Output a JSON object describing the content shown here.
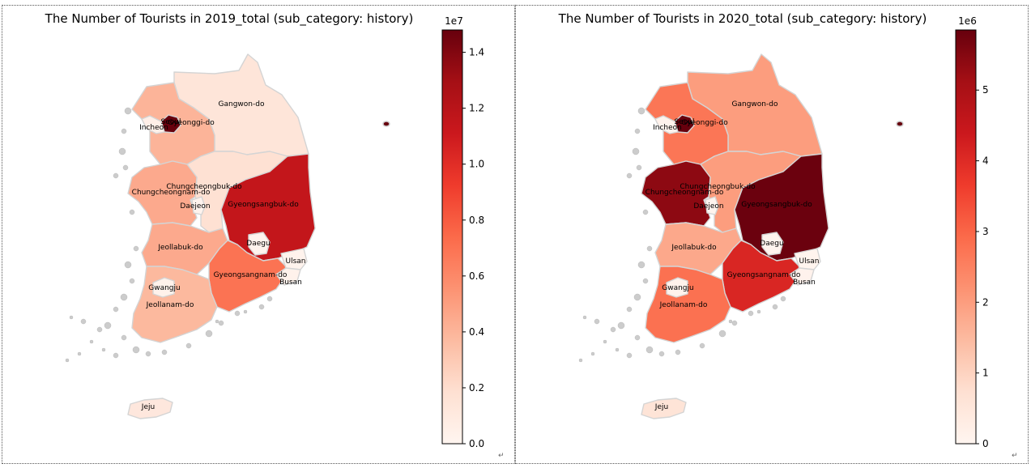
{
  "maps": [
    {
      "title": "The Number of Tourists in 2019_total (sub_category: history)",
      "colorbar": {
        "multiplier": "1e7",
        "ticks": [
          "0.0",
          "0.2",
          "0.4",
          "0.6",
          "0.8",
          "1.0",
          "1.2",
          "1.4"
        ],
        "max": 1.48
      },
      "regions": [
        {
          "name": "Seoul",
          "value": 1.48
        },
        {
          "name": "Incheon",
          "value": 0.05
        },
        {
          "name": "Gyeonggi-do",
          "value": 0.4
        },
        {
          "name": "Gangwon-do",
          "value": 0.14
        },
        {
          "name": "Chungcheongbuk-do",
          "value": 0.18
        },
        {
          "name": "Chungcheongnam-do",
          "value": 0.45
        },
        {
          "name": "Daejeon",
          "value": 0.02
        },
        {
          "name": "Gyeongsangbuk-do",
          "value": 1.15
        },
        {
          "name": "Daegu",
          "value": 0.02
        },
        {
          "name": "Jeollabuk-do",
          "value": 0.45
        },
        {
          "name": "Ulsan",
          "value": 0.02
        },
        {
          "name": "Gyeongsangnam-do",
          "value": 0.7
        },
        {
          "name": "Busan",
          "value": 0.03
        },
        {
          "name": "Gwangju",
          "value": 0.03
        },
        {
          "name": "Jeollanam-do",
          "value": 0.38
        },
        {
          "name": "Jeju",
          "value": 0.12
        }
      ]
    },
    {
      "title": "The Number of Tourists in 2020_total (sub_category: history)",
      "colorbar": {
        "multiplier": "1e6",
        "ticks": [
          "0",
          "1",
          "2",
          "3",
          "4",
          "5"
        ],
        "max": 5.85
      },
      "regions": [
        {
          "name": "Seoul",
          "value": 5.85
        },
        {
          "name": "Incheon",
          "value": 0.1
        },
        {
          "name": "Gyeonggi-do",
          "value": 2.7
        },
        {
          "name": "Gangwon-do",
          "value": 2.0
        },
        {
          "name": "Chungcheongbuk-do",
          "value": 2.0
        },
        {
          "name": "Chungcheongnam-do",
          "value": 5.4
        },
        {
          "name": "Daejeon",
          "value": 0.05
        },
        {
          "name": "Gyeongsangbuk-do",
          "value": 5.8
        },
        {
          "name": "Daegu",
          "value": 0.05
        },
        {
          "name": "Jeollabuk-do",
          "value": 1.8
        },
        {
          "name": "Ulsan",
          "value": 0.05
        },
        {
          "name": "Gyeongsangnam-do",
          "value": 4.1
        },
        {
          "name": "Busan",
          "value": 0.1
        },
        {
          "name": "Gwangju",
          "value": 0.1
        },
        {
          "name": "Jeollanam-do",
          "value": 2.8
        },
        {
          "name": "Jeju",
          "value": 0.6
        }
      ]
    }
  ],
  "return_mark": "↵"
}
